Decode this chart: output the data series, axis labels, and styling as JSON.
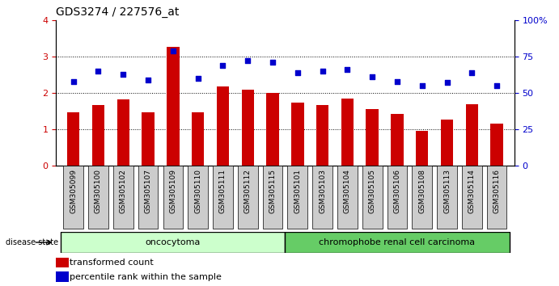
{
  "title": "GDS3274 / 227576_at",
  "samples": [
    "GSM305099",
    "GSM305100",
    "GSM305102",
    "GSM305107",
    "GSM305109",
    "GSM305110",
    "GSM305111",
    "GSM305112",
    "GSM305115",
    "GSM305101",
    "GSM305103",
    "GSM305104",
    "GSM305105",
    "GSM305106",
    "GSM305108",
    "GSM305113",
    "GSM305114",
    "GSM305116"
  ],
  "transformed_count": [
    1.48,
    1.67,
    1.82,
    1.47,
    3.27,
    1.47,
    2.18,
    2.08,
    2.0,
    1.73,
    1.66,
    1.85,
    1.55,
    1.42,
    0.97,
    1.26,
    1.68,
    1.17
  ],
  "percentile_rank": [
    58,
    65,
    63,
    59,
    79,
    60,
    69,
    72,
    71,
    64,
    65,
    66,
    61,
    58,
    55,
    57,
    64,
    55
  ],
  "group1_count": 9,
  "group2_count": 9,
  "group1_label": "oncocytoma",
  "group2_label": "chromophobe renal cell carcinoma",
  "disease_state_label": "disease state",
  "bar_color": "#cc0000",
  "dot_color": "#0000cc",
  "group1_bg": "#ccffcc",
  "group2_bg": "#66cc66",
  "xlabel_bg": "#cccccc",
  "ylim_left": [
    0,
    4
  ],
  "ylim_right": [
    0,
    100
  ],
  "yticks_left": [
    0,
    1,
    2,
    3,
    4
  ],
  "yticks_right": [
    0,
    25,
    50,
    75,
    100
  ],
  "legend_red_label": "transformed count",
  "legend_blue_label": "percentile rank within the sample"
}
